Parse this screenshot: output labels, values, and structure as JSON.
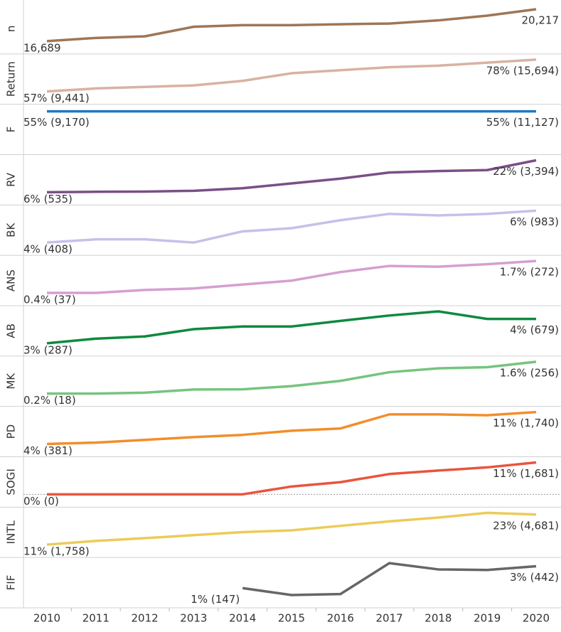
{
  "chart_data": {
    "type": "line",
    "categories": [
      "2010",
      "2011",
      "2012",
      "2013",
      "2014",
      "2015",
      "2016",
      "2017",
      "2018",
      "2019",
      "2020"
    ],
    "series": [
      {
        "name": "n",
        "color": "#9e7658",
        "values": [
          16689,
          17042,
          17218,
          18277,
          18453,
          18453,
          18559,
          18630,
          18983,
          19512,
          20217
        ],
        "value_labels": [
          "16,689",
          null,
          null,
          null,
          null,
          null,
          null,
          null,
          null,
          null,
          "20,217"
        ]
      },
      {
        "name": "Return",
        "color": "#d8b2a2",
        "values": [
          57,
          59,
          60,
          61,
          64,
          69,
          71,
          73,
          74,
          76,
          78
        ],
        "value_labels": [
          "57% (9,441)",
          null,
          null,
          null,
          null,
          null,
          null,
          null,
          null,
          null,
          "78% (15,694)"
        ]
      },
      {
        "name": "F",
        "color": "#1f78c1",
        "values": [
          55,
          55,
          55,
          55,
          55,
          55,
          55,
          55,
          55,
          55,
          55
        ],
        "value_labels": [
          "55% (9,170)",
          null,
          null,
          null,
          null,
          null,
          null,
          null,
          null,
          null,
          "55% (11,127)"
        ]
      },
      {
        "name": "RV",
        "color": "#7a4f86",
        "values": [
          6,
          6.2,
          6.3,
          6.7,
          8.0,
          10.4,
          12.8,
          15.9,
          16.6,
          17.1,
          22
        ],
        "value_labels": [
          "6% (535)",
          null,
          null,
          null,
          null,
          null,
          null,
          null,
          null,
          null,
          "22% (3,394)"
        ]
      },
      {
        "name": "BK",
        "color": "#c6c0ea",
        "values": [
          4,
          4.2,
          4.2,
          4.0,
          4.7,
          4.9,
          5.4,
          5.8,
          5.7,
          5.8,
          6
        ],
        "value_labels": [
          "4% (408)",
          null,
          null,
          null,
          null,
          null,
          null,
          null,
          null,
          null,
          "6% (983)"
        ]
      },
      {
        "name": "ANS",
        "color": "#d69fd0",
        "values": [
          0.4,
          0.4,
          0.52,
          0.58,
          0.74,
          0.9,
          1.25,
          1.5,
          1.47,
          1.57,
          1.7
        ],
        "value_labels": [
          "0.4% (37)",
          null,
          null,
          null,
          null,
          null,
          null,
          null,
          null,
          null,
          "1.7% (272)"
        ]
      },
      {
        "name": "AB",
        "color": "#0e8a3e",
        "values": [
          3,
          3.19,
          3.28,
          3.58,
          3.69,
          3.69,
          3.92,
          4.14,
          4.31,
          4.0,
          4
        ],
        "value_labels": [
          "3% (287)",
          null,
          null,
          null,
          null,
          null,
          null,
          null,
          null,
          null,
          "4% (679)"
        ]
      },
      {
        "name": "MK",
        "color": "#76c47f",
        "values": [
          0.2,
          0.2,
          0.24,
          0.38,
          0.39,
          0.53,
          0.76,
          1.14,
          1.31,
          1.36,
          1.6
        ],
        "value_labels": [
          "0.2% (18)",
          null,
          null,
          null,
          null,
          null,
          null,
          null,
          null,
          null,
          "1.6% (256)"
        ]
      },
      {
        "name": "PD",
        "color": "#f28e2b",
        "values": [
          4,
          4.3,
          4.9,
          5.5,
          6.0,
          6.9,
          7.4,
          10.5,
          10.5,
          10.3,
          11
        ],
        "value_labels": [
          "4% (381)",
          null,
          null,
          null,
          null,
          null,
          null,
          null,
          null,
          null,
          "11% (1,740)"
        ]
      },
      {
        "name": "SOGI",
        "color": "#e8553f",
        "values": [
          0,
          0,
          0,
          0,
          0,
          2.7,
          4.2,
          7.0,
          8.2,
          9.3,
          11
        ],
        "value_labels": [
          "0% (0)",
          null,
          null,
          null,
          null,
          null,
          null,
          null,
          null,
          null,
          "11% (1,681)"
        ]
      },
      {
        "name": "INTL",
        "color": "#eccb5a",
        "values": [
          11,
          12.5,
          13.6,
          14.8,
          16.0,
          16.7,
          18.5,
          20.3,
          21.8,
          23.7,
          23
        ],
        "value_labels": [
          "11% (1,758)",
          null,
          null,
          null,
          null,
          null,
          null,
          null,
          null,
          null,
          "23% (4,681)"
        ]
      },
      {
        "name": "FIF",
        "color": "#666666",
        "values": [
          null,
          null,
          null,
          null,
          1,
          0.37,
          0.46,
          3.28,
          2.71,
          2.66,
          3
        ],
        "value_labels": [
          null,
          null,
          null,
          null,
          "1% (147)",
          null,
          null,
          null,
          null,
          null,
          "3% (442)"
        ]
      }
    ]
  }
}
